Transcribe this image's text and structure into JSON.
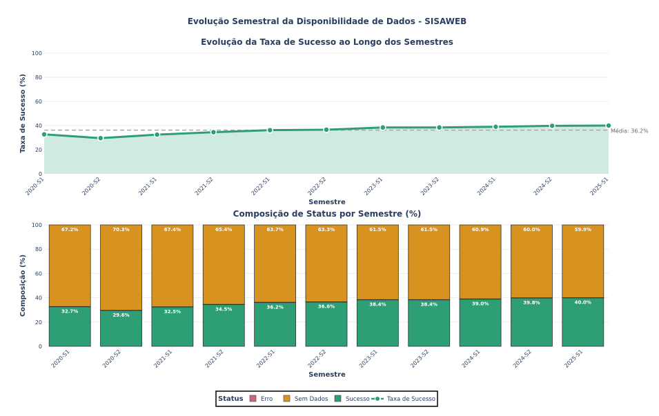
{
  "chart_data": [
    {
      "type": "line",
      "suptitle": "Evolução Semestral da Disponibilidade de Dados - SISAWEB",
      "title": "Evolução da Taxa de Sucesso ao Longo dos Semestres",
      "xlabel": "Semestre",
      "ylabel": "Taxa de Sucesso (%)",
      "ylim": [
        0,
        100
      ],
      "yticks": [
        0,
        20,
        40,
        60,
        80,
        100
      ],
      "categories": [
        "2020-S1",
        "2020-S2",
        "2021-S1",
        "2021-S2",
        "2022-S1",
        "2022-S2",
        "2023-S1",
        "2023-S2",
        "2024-S1",
        "2024-S2",
        "2025-S1"
      ],
      "series": [
        {
          "name": "Taxa de Sucesso",
          "values": [
            32.7,
            29.6,
            32.5,
            34.5,
            36.2,
            36.6,
            38.4,
            38.4,
            39.0,
            39.8,
            40.0
          ],
          "color": "#2e9e74"
        }
      ],
      "mean": 36.2,
      "mean_label": "Média: 36.2%",
      "fill_color": "#cfeae0"
    },
    {
      "type": "bar",
      "stacked": true,
      "title": "Composição de Status por Semestre (%)",
      "xlabel": "Semestre",
      "ylabel": "Composição (%)",
      "ylim": [
        0,
        100
      ],
      "yticks": [
        0,
        20,
        40,
        60,
        80,
        100
      ],
      "categories": [
        "2020-S1",
        "2020-S2",
        "2021-S1",
        "2021-S2",
        "2022-S1",
        "2022-S2",
        "2023-S1",
        "2023-S2",
        "2024-S1",
        "2024-S2",
        "2025-S1"
      ],
      "series": [
        {
          "name": "Sucesso",
          "color": "#2e9e74",
          "values": [
            32.7,
            29.6,
            32.5,
            34.5,
            36.2,
            36.6,
            38.4,
            38.4,
            39.0,
            39.8,
            40.0
          ],
          "labels": [
            "32.7%",
            "29.6%",
            "32.5%",
            "34.5%",
            "36.2%",
            "36.6%",
            "38.4%",
            "38.4%",
            "39.0%",
            "39.8%",
            "40.0%"
          ]
        },
        {
          "name": "Erro",
          "color": "#c9667a",
          "values": [
            0.1,
            0.1,
            0.1,
            0.1,
            0.1,
            0.1,
            0.1,
            0.1,
            0.1,
            0.2,
            0.1
          ]
        },
        {
          "name": "Sem Dados",
          "color": "#d89220",
          "values": [
            67.2,
            70.3,
            67.4,
            65.4,
            63.7,
            63.3,
            61.5,
            61.5,
            60.9,
            60.0,
            59.9
          ],
          "labels": [
            "67.2%",
            "70.3%",
            "67.4%",
            "65.4%",
            "63.7%",
            "63.3%",
            "61.5%",
            "61.5%",
            "60.9%",
            "60.0%",
            "59.9%"
          ]
        }
      ]
    }
  ],
  "legend": {
    "title": "Status",
    "items": [
      {
        "label": "Erro",
        "color": "#c9667a",
        "kind": "box"
      },
      {
        "label": "Sem Dados",
        "color": "#d89220",
        "kind": "box"
      },
      {
        "label": "Sucesso",
        "color": "#2e9e74",
        "kind": "box"
      },
      {
        "label": "Taxa de Sucesso",
        "color": "#2e9e74",
        "kind": "line"
      }
    ]
  }
}
